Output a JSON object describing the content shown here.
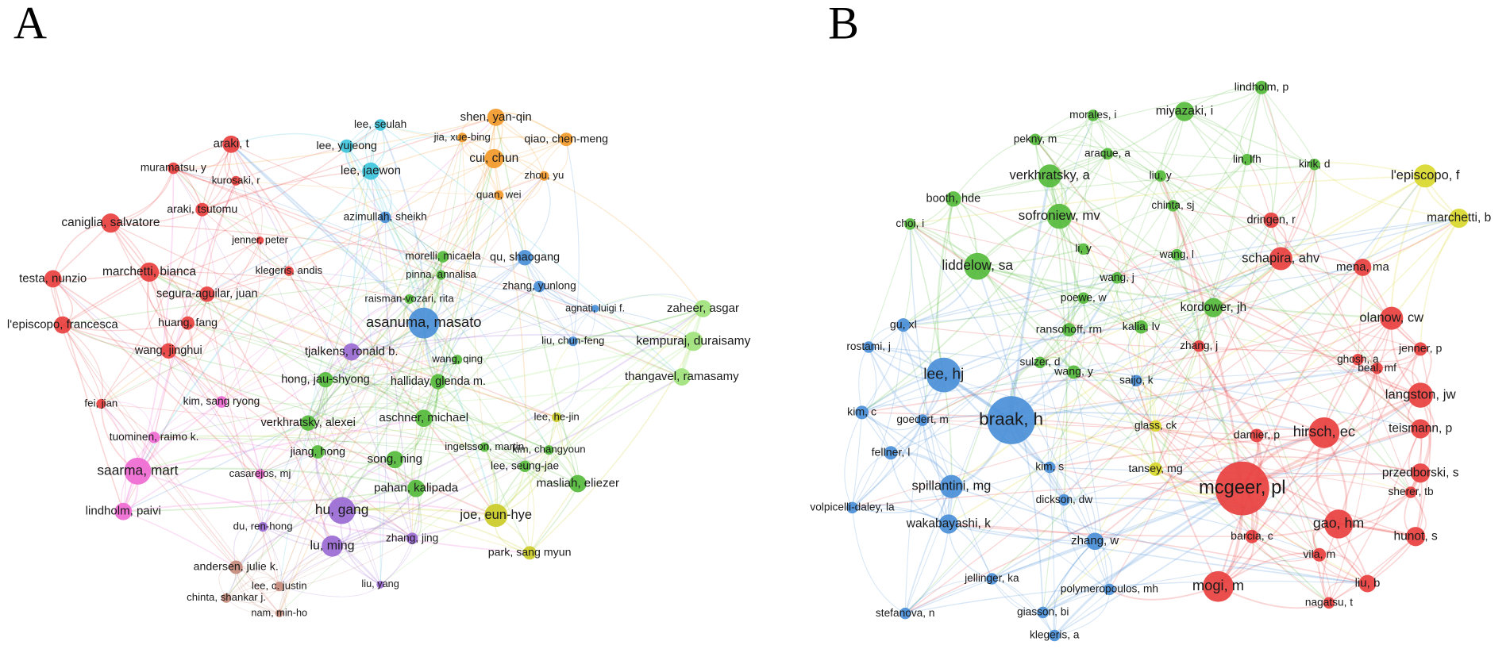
{
  "panels": [
    {
      "label": "A",
      "clusters": [
        {
          "color": "#e8403f",
          "nodes": [
            "araki, t",
            "muramatsu, y",
            "kurosaki, r",
            "araki, tsutomu",
            "caniglia, salvatore",
            "jenner, peter",
            "testa, nunzio",
            "marchetti, bianca",
            "klegeris, andis",
            "segura-aguilar, juan",
            "l'episcopo, francesca",
            "huang, fang",
            "wang, jinghui",
            "fei, jian"
          ]
        },
        {
          "color": "#4a8fd8",
          "nodes": [
            "azimullah, sheikh",
            "asanuma, masato",
            "qu, shaogang",
            "zhang, yunlong",
            "agnati, luigi f.",
            "liu, chun-feng"
          ]
        },
        {
          "color": "#3ec5dc",
          "nodes": [
            "lee, seulah",
            "lee, yujeong",
            "lee, jaewon"
          ]
        },
        {
          "color": "#f2992a",
          "nodes": [
            "shen, yan-qin",
            "jia, xue-bing",
            "qiao, chen-meng",
            "cui, chun",
            "zhou, yu",
            "quan, wei"
          ]
        },
        {
          "color": "#55bb3c",
          "nodes": [
            "morelli, micaela",
            "pinna, annalisa",
            "raisman-vozari, rita",
            "hong, jau-shyong",
            "halliday, glenda m.",
            "wang, qing",
            "verkhratsky, alexei",
            "aschner, michael",
            "jiang, hong",
            "song, ning",
            "ingelsson, martin",
            "kim, changyoun",
            "lee, seung-jae",
            "masliah, eliezer",
            "pahan, kalipada"
          ]
        },
        {
          "color": "#9fe27c",
          "nodes": [
            "zaheer, asgar",
            "kempuraj, duraisamy",
            "thangavel, ramasamy"
          ]
        },
        {
          "color": "#9a6ad2",
          "nodes": [
            "tjalkens, ronald b.",
            "hu, gang",
            "lu, ming",
            "zhang, jing",
            "du, ren-hong",
            "liu, yang"
          ]
        },
        {
          "color": "#ef6ad2",
          "nodes": [
            "kim, sang ryong",
            "tuominen, raimo k.",
            "saarma, mart",
            "casarejos, mj",
            "lindholm, paivi"
          ]
        },
        {
          "color": "#cbcc28",
          "nodes": [
            "lee, he-jin",
            "joe, eun-hye",
            "park, sang myun"
          ]
        },
        {
          "color": "#c48b7c",
          "nodes": [
            "andersen, julie k.",
            "lee, c. justin",
            "chinta, shankar j.",
            "nam, min-ho"
          ]
        }
      ]
    },
    {
      "label": "B",
      "clusters": [
        {
          "color": "#55bb3c",
          "nodes": [
            "lindholm, p",
            "morales, i",
            "miyazaki, i",
            "pekny, m",
            "araque, a",
            "verkhratsky, a",
            "liu, y",
            "booth, hde",
            "chinta, sj",
            "sofroniew, mv",
            "choi, i",
            "li, y",
            "liddelow, sa",
            "wang, l",
            "wang, j",
            "poewe, w",
            "kordower, jh",
            "ransohoff, rm",
            "kalia, lv",
            "wang, y",
            "sulzer, d",
            "lin, lfh",
            "kirik, d"
          ]
        },
        {
          "color": "#d9d82c",
          "nodes": [
            "l'episcopo, f",
            "marchetti, b",
            "glass, ck",
            "tansey, mg"
          ]
        },
        {
          "color": "#e8403f",
          "nodes": [
            "dringen, r",
            "schapira, ahv",
            "mena, ma",
            "olanow, cw",
            "jenner, p",
            "ghosh, a",
            "beal, mf",
            "zhang, j",
            "langston, jw",
            "hirsch, ec",
            "teismann, p",
            "damier, p",
            "mcgeer, pl",
            "przedborski, s",
            "sherer, tb",
            "gao, hm",
            "hunot, s",
            "barcia, c",
            "vila, m",
            "mogi, m",
            "liu, b",
            "nagatsu, t"
          ]
        },
        {
          "color": "#4a8fd8",
          "nodes": [
            "gu, xl",
            "rostami, j",
            "lee, hj",
            "saijo, k",
            "braak, h",
            "kim, c",
            "goedert, m",
            "fellner, l",
            "kim, s",
            "spillantini, mg",
            "dickson, dw",
            "volpicelli-daley, la",
            "wakabayashi, k",
            "zhang, w",
            "jellinger, ka",
            "polymeropoulos, mh",
            "stefanova, n",
            "giasson, bi",
            "klegeris, a"
          ]
        }
      ]
    }
  ]
}
